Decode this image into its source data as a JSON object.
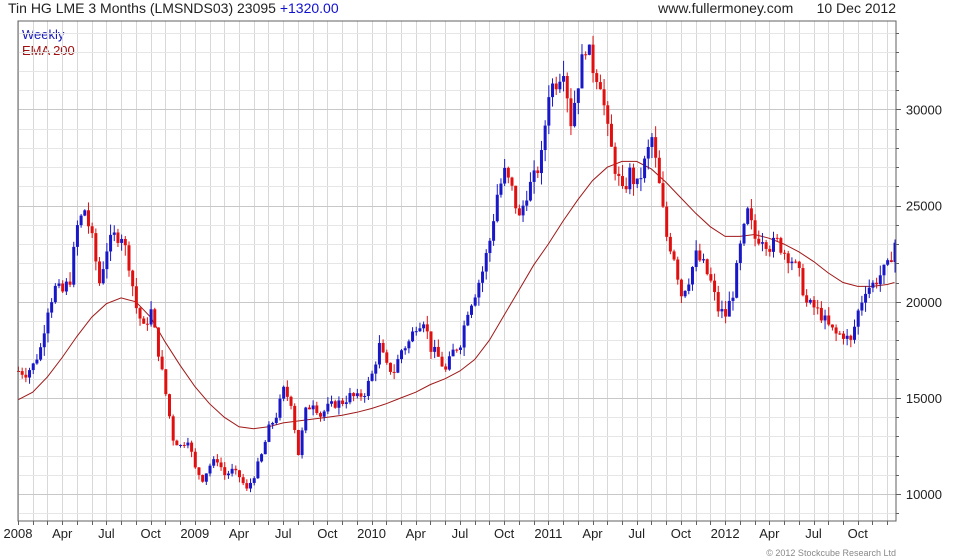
{
  "header": {
    "instrument": "Tin HG LME 3 Months (LMSNDS03)",
    "last": "23095",
    "change": "+1320.00",
    "website": "www.fullermoney.com",
    "date": "10 Dec 2012"
  },
  "legend": {
    "series1": "Weekly",
    "series2": "EMA 200"
  },
  "copyright": "© 2012 Stockcube Research Ltd",
  "colors": {
    "up": "#1818c8",
    "down": "#e01010",
    "ema": "#a01818",
    "grid": "#d8d8d8",
    "axis": "#606060"
  },
  "chart_data": {
    "type": "line",
    "title": "Tin HG LME 3 Months (LMSNDS03)",
    "x_axis": {
      "ticks": [
        {
          "label": "2008",
          "t": 0
        },
        {
          "label": "Apr",
          "t": 3
        },
        {
          "label": "Jul",
          "t": 6
        },
        {
          "label": "Oct",
          "t": 9
        },
        {
          "label": "2009",
          "t": 12
        },
        {
          "label": "Apr",
          "t": 15
        },
        {
          "label": "Jul",
          "t": 18
        },
        {
          "label": "Oct",
          "t": 21
        },
        {
          "label": "2010",
          "t": 24
        },
        {
          "label": "Apr",
          "t": 27
        },
        {
          "label": "Jul",
          "t": 30
        },
        {
          "label": "Oct",
          "t": 33
        },
        {
          "label": "2011",
          "t": 36
        },
        {
          "label": "Apr",
          "t": 39
        },
        {
          "label": "Jul",
          "t": 42
        },
        {
          "label": "Oct",
          "t": 45
        },
        {
          "label": "2012",
          "t": 48
        },
        {
          "label": "Apr",
          "t": 51
        },
        {
          "label": "Jul",
          "t": 54
        },
        {
          "label": "Oct",
          "t": 57
        }
      ],
      "range_months": [
        0,
        59.6
      ]
    },
    "y_axis": {
      "ticks": [
        10000,
        15000,
        20000,
        25000,
        30000
      ],
      "range": [
        8600,
        34600
      ],
      "position": "right"
    },
    "grid": true,
    "legend_position": "top-left",
    "series": [
      {
        "name": "Weekly",
        "style": "weekly bars, blue up / red down",
        "points": [
          [
            0,
            16400
          ],
          [
            0.5,
            16300
          ],
          [
            1,
            16700
          ],
          [
            1.5,
            17600
          ],
          [
            2,
            19700
          ],
          [
            2.5,
            20700
          ],
          [
            3,
            20500
          ],
          [
            3.5,
            21200
          ],
          [
            4,
            23900
          ],
          [
            4.5,
            24800
          ],
          [
            5,
            23200
          ],
          [
            5.5,
            21000
          ],
          [
            6,
            22800
          ],
          [
            6.5,
            23400
          ],
          [
            7,
            23500
          ],
          [
            7.5,
            22000
          ],
          [
            8,
            19700
          ],
          [
            8.5,
            18600
          ],
          [
            9,
            19500
          ],
          [
            9.5,
            17400
          ],
          [
            10,
            15200
          ],
          [
            10.5,
            12900
          ],
          [
            11,
            12500
          ],
          [
            11.5,
            12900
          ],
          [
            12,
            11300
          ],
          [
            12.5,
            10800
          ],
          [
            13,
            11500
          ],
          [
            13.5,
            11800
          ],
          [
            14,
            11000
          ],
          [
            14.5,
            11200
          ],
          [
            15,
            10900
          ],
          [
            15.5,
            10200
          ],
          [
            16,
            11000
          ],
          [
            16.5,
            12000
          ],
          [
            17,
            13400
          ],
          [
            17.5,
            14100
          ],
          [
            18,
            15400
          ],
          [
            18.5,
            14800
          ],
          [
            19,
            12100
          ],
          [
            19.5,
            14300
          ],
          [
            20,
            14800
          ],
          [
            20.5,
            14100
          ],
          [
            21,
            14500
          ],
          [
            21.5,
            14700
          ],
          [
            22,
            14800
          ],
          [
            22.5,
            15100
          ],
          [
            23,
            15000
          ],
          [
            23.5,
            15300
          ],
          [
            24,
            16200
          ],
          [
            24.5,
            17700
          ],
          [
            25,
            16600
          ],
          [
            25.5,
            16400
          ],
          [
            26,
            17500
          ],
          [
            26.5,
            17900
          ],
          [
            27,
            18800
          ],
          [
            27.5,
            19100
          ],
          [
            28,
            17600
          ],
          [
            28.5,
            17100
          ],
          [
            29,
            16400
          ],
          [
            29.5,
            17400
          ],
          [
            30,
            17900
          ],
          [
            30.5,
            19600
          ],
          [
            31,
            20500
          ],
          [
            31.5,
            21600
          ],
          [
            32,
            23200
          ],
          [
            32.5,
            25600
          ],
          [
            33,
            26700
          ],
          [
            33.5,
            25800
          ],
          [
            34,
            24300
          ],
          [
            34.5,
            25700
          ],
          [
            35,
            26400
          ],
          [
            35.5,
            27500
          ],
          [
            36,
            31000
          ],
          [
            36.5,
            31500
          ],
          [
            37,
            32300
          ],
          [
            37.5,
            29400
          ],
          [
            38,
            31500
          ],
          [
            38.5,
            33400
          ],
          [
            39,
            32200
          ],
          [
            39.5,
            31500
          ],
          [
            40,
            28800
          ],
          [
            40.5,
            27000
          ],
          [
            41,
            25600
          ],
          [
            41.5,
            26700
          ],
          [
            42,
            26000
          ],
          [
            42.5,
            27200
          ],
          [
            43,
            28500
          ],
          [
            43.5,
            26000
          ],
          [
            44,
            23400
          ],
          [
            44.5,
            22400
          ],
          [
            45,
            20400
          ],
          [
            45.5,
            21200
          ],
          [
            46,
            22400
          ],
          [
            46.5,
            21900
          ],
          [
            47,
            21000
          ],
          [
            47.5,
            19600
          ],
          [
            48,
            19300
          ],
          [
            48.5,
            20500
          ],
          [
            49,
            22800
          ],
          [
            49.5,
            24600
          ],
          [
            50,
            23300
          ],
          [
            50.5,
            23400
          ],
          [
            51,
            22900
          ],
          [
            51.5,
            23100
          ],
          [
            52,
            22600
          ],
          [
            52.5,
            22200
          ],
          [
            53,
            21400
          ],
          [
            53.5,
            19900
          ],
          [
            54,
            19700
          ],
          [
            54.5,
            19300
          ],
          [
            55,
            18700
          ],
          [
            55.5,
            18300
          ],
          [
            56,
            18300
          ],
          [
            56.5,
            17900
          ],
          [
            57,
            19500
          ],
          [
            57.5,
            20700
          ],
          [
            58,
            20900
          ],
          [
            58.5,
            21400
          ],
          [
            59,
            21800
          ],
          [
            59.5,
            23095
          ]
        ]
      },
      {
        "name": "EMA 200",
        "style": "line",
        "points": [
          [
            0,
            14900
          ],
          [
            1,
            15300
          ],
          [
            2,
            16100
          ],
          [
            3,
            17100
          ],
          [
            4,
            18200
          ],
          [
            5,
            19200
          ],
          [
            6,
            19900
          ],
          [
            7,
            20200
          ],
          [
            8,
            20000
          ],
          [
            9,
            19200
          ],
          [
            10,
            17900
          ],
          [
            11,
            16700
          ],
          [
            12,
            15600
          ],
          [
            13,
            14700
          ],
          [
            14,
            14000
          ],
          [
            15,
            13500
          ],
          [
            16,
            13400
          ],
          [
            17,
            13500
          ],
          [
            18,
            13700
          ],
          [
            19,
            13800
          ],
          [
            20,
            13900
          ],
          [
            21,
            14000
          ],
          [
            22,
            14100
          ],
          [
            23,
            14250
          ],
          [
            24,
            14450
          ],
          [
            25,
            14700
          ],
          [
            26,
            15000
          ],
          [
            27,
            15300
          ],
          [
            28,
            15700
          ],
          [
            29,
            16000
          ],
          [
            30,
            16400
          ],
          [
            31,
            17000
          ],
          [
            32,
            18000
          ],
          [
            33,
            19300
          ],
          [
            34,
            20600
          ],
          [
            35,
            21900
          ],
          [
            36,
            23000
          ],
          [
            37,
            24200
          ],
          [
            38,
            25300
          ],
          [
            39,
            26300
          ],
          [
            40,
            27000
          ],
          [
            41,
            27300
          ],
          [
            42,
            27300
          ],
          [
            43,
            26900
          ],
          [
            44,
            26200
          ],
          [
            45,
            25400
          ],
          [
            46,
            24600
          ],
          [
            47,
            23900
          ],
          [
            48,
            23400
          ],
          [
            49,
            23400
          ],
          [
            50,
            23500
          ],
          [
            51,
            23300
          ],
          [
            52,
            23000
          ],
          [
            53,
            22600
          ],
          [
            54,
            22100
          ],
          [
            55,
            21500
          ],
          [
            56,
            21000
          ],
          [
            57,
            20800
          ],
          [
            58,
            20800
          ],
          [
            59,
            20900
          ],
          [
            59.5,
            21000
          ]
        ]
      }
    ]
  }
}
